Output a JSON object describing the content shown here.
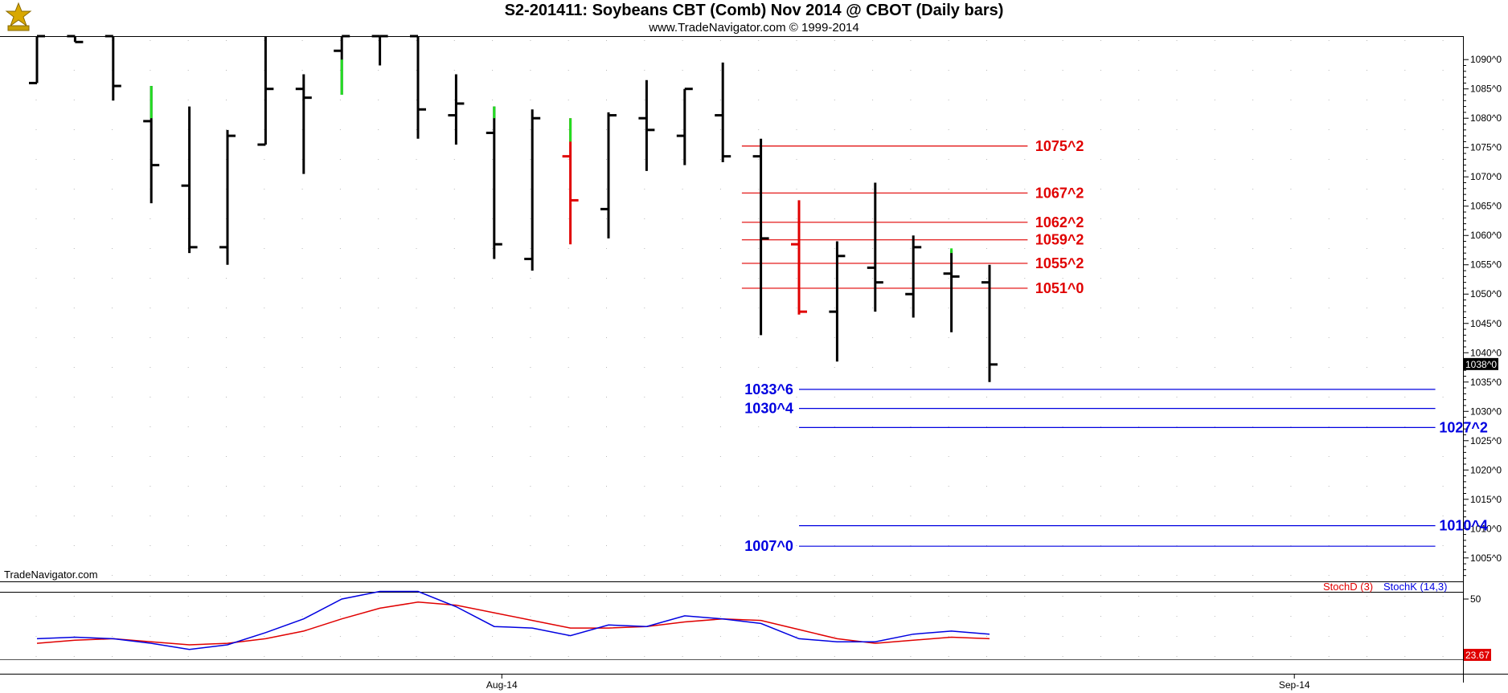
{
  "header": {
    "title": "S2-201411:  Soybeans CBT (Comb) Nov 2014 @ CBOT  (Daily bars)",
    "subtitle": "www.TradeNavigator.com © 1999-2014",
    "watermark": "TradeNavigator.com"
  },
  "colors": {
    "bar_default": "#000000",
    "bar_up_highlight": "#22dd22",
    "bar_red": "#e00000",
    "level_red": "#e00000",
    "level_blue": "#0000e0",
    "stoch_d": "#e00000",
    "stoch_k": "#0000e0",
    "last_price_bg": "#000000",
    "stoch_value_bg": "#e00000"
  },
  "chart_data": [
    {
      "type": "ohlc",
      "title": "S2-201411:  Soybeans CBT (Comb) Nov 2014 @ CBOT  (Daily bars)",
      "y_ticks": [
        "1090^0",
        "1085^0",
        "1080^0",
        "1075^0",
        "1070^0",
        "1065^0",
        "1060^0",
        "1055^0",
        "1050^0",
        "1045^0",
        "1040^0",
        "1035^0",
        "1030^0",
        "1025^0",
        "1020^0",
        "1015^0",
        "1010^0",
        "1005^0"
      ],
      "y_tick_values": [
        1090,
        1085,
        1080,
        1075,
        1070,
        1065,
        1060,
        1055,
        1050,
        1045,
        1040,
        1035,
        1030,
        1025,
        1020,
        1015,
        1010,
        1005
      ],
      "ylim": [
        1001,
        1094
      ],
      "x_labels": [
        {
          "text": "Aug-14",
          "bar_index": 12.2
        },
        {
          "text": "Sep-14",
          "bar_index": 33.0
        }
      ],
      "last_price_label": "1038^0",
      "last_price": 1038.0,
      "bars": [
        {
          "o": 1086,
          "h": 1094,
          "l": 1086,
          "c": 1094
        },
        {
          "o": 1094,
          "h": 1094,
          "l": 1093,
          "c": 1093
        },
        {
          "o": 1094,
          "h": 1094,
          "l": 1083,
          "c": 1085.5
        },
        {
          "o": 1079.5,
          "h": 1085.5,
          "l": 1065.5,
          "c": 1072,
          "hl": [
            1080,
            1085.5
          ]
        },
        {
          "o": 1068.5,
          "h": 1082,
          "l": 1057,
          "c": 1058
        },
        {
          "o": 1058,
          "h": 1078,
          "l": 1055,
          "c": 1077
        },
        {
          "o": 1075.5,
          "h": 1094,
          "l": 1075.5,
          "c": 1085
        },
        {
          "o": 1085,
          "h": 1087.5,
          "l": 1070.5,
          "c": 1083.5
        },
        {
          "o": 1091.5,
          "h": 1094,
          "l": 1084,
          "c": 1094,
          "hl": [
            1084,
            1090
          ]
        },
        {
          "o": 1094,
          "h": 1094,
          "l": 1089,
          "c": 1094
        },
        {
          "o": 1094,
          "h": 1094,
          "l": 1076.5,
          "c": 1081.5
        },
        {
          "o": 1080.5,
          "h": 1087.5,
          "l": 1075.5,
          "c": 1082.5
        },
        {
          "o": 1077.5,
          "h": 1082,
          "l": 1056,
          "c": 1058.5,
          "hl": [
            1080,
            1082
          ]
        },
        {
          "o": 1056,
          "h": 1081.5,
          "l": 1054,
          "c": 1080
        },
        {
          "o": 1073.5,
          "h": 1080,
          "l": 1058.5,
          "c": 1066,
          "color": "red",
          "hl": [
            1076,
            1080
          ]
        },
        {
          "o": 1064.5,
          "h": 1081,
          "l": 1059.5,
          "c": 1080.5
        },
        {
          "o": 1080,
          "h": 1086.5,
          "l": 1071,
          "c": 1078
        },
        {
          "o": 1077,
          "h": 1085,
          "l": 1072,
          "c": 1085
        },
        {
          "o": 1080.5,
          "h": 1089.5,
          "l": 1072.5,
          "c": 1073.5
        },
        {
          "o": 1073.5,
          "h": 1076.5,
          "l": 1043,
          "c": 1059.5
        },
        {
          "o": 1058.5,
          "h": 1066,
          "l": 1046.5,
          "c": 1047,
          "color": "red"
        },
        {
          "o": 1047,
          "h": 1059,
          "l": 1038.5,
          "c": 1056.5
        },
        {
          "o": 1054.5,
          "h": 1069,
          "l": 1047,
          "c": 1052
        },
        {
          "o": 1050,
          "h": 1060,
          "l": 1046,
          "c": 1058
        },
        {
          "o": 1053.5,
          "h": 1057.5,
          "l": 1043.5,
          "c": 1053,
          "hl": [
            1057,
            1057.8
          ]
        },
        {
          "o": 1052,
          "h": 1055,
          "l": 1035,
          "c": 1038
        }
      ],
      "levels": [
        {
          "label": "1075^2",
          "value": 1075.25,
          "color": "red",
          "x_start_bar": 18.5,
          "x_end_bar": 26.0,
          "label_side": "right",
          "label_bar": 26.2
        },
        {
          "label": "1067^2",
          "value": 1067.25,
          "color": "red",
          "x_start_bar": 18.5,
          "x_end_bar": 26.0,
          "label_side": "right",
          "label_bar": 26.2
        },
        {
          "label": "1062^2",
          "value": 1062.25,
          "color": "red",
          "x_start_bar": 18.5,
          "x_end_bar": 26.0,
          "label_side": "right",
          "label_bar": 26.2
        },
        {
          "label": "1059^2",
          "value": 1059.25,
          "color": "red",
          "x_start_bar": 18.5,
          "x_end_bar": 26.0,
          "label_side": "right",
          "label_bar": 26.2
        },
        {
          "label": "1055^2",
          "value": 1055.25,
          "color": "red",
          "x_start_bar": 18.5,
          "x_end_bar": 26.0,
          "label_side": "right",
          "label_bar": 26.2
        },
        {
          "label": "1051^0",
          "value": 1051.0,
          "color": "red",
          "x_start_bar": 18.5,
          "x_end_bar": 26.0,
          "label_side": "right",
          "label_bar": 26.2
        },
        {
          "label": "1033^6",
          "value": 1033.75,
          "color": "blue",
          "x_start_bar": 20.0,
          "x_end_bar": 36.7,
          "label_side": "left",
          "label_bar": 19.85
        },
        {
          "label": "1030^4",
          "value": 1030.5,
          "color": "blue",
          "x_start_bar": 20.0,
          "x_end_bar": 36.7,
          "label_side": "left",
          "label_bar": 19.85
        },
        {
          "label": "1027^2",
          "value": 1027.25,
          "color": "blue",
          "x_start_bar": 20.0,
          "x_end_bar": 36.7,
          "label_side": "right",
          "label_bar": 36.8
        },
        {
          "label": "1010^4",
          "value": 1010.5,
          "color": "blue",
          "x_start_bar": 20.0,
          "x_end_bar": 36.7,
          "label_side": "right",
          "label_bar": 36.8
        },
        {
          "label": "1007^0",
          "value": 1007.0,
          "color": "blue",
          "x_start_bar": 20.0,
          "x_end_bar": 36.7,
          "label_side": "left",
          "label_bar": 19.85
        }
      ]
    },
    {
      "type": "line",
      "title": "",
      "legend": [
        "StochD (3)",
        "StochK (14,3)"
      ],
      "legend_placement": "top-right",
      "y_ticks": [
        "50"
      ],
      "y_tick_values": [
        50
      ],
      "ylim": [
        0,
        100
      ],
      "last_value_label": "23.67",
      "series": [
        {
          "name": "StochD (3)",
          "color": "red",
          "values": [
            21,
            23,
            24,
            22,
            20,
            21,
            24,
            29,
            37,
            44,
            48,
            46,
            41,
            36,
            31,
            31,
            32,
            35,
            37,
            36,
            30,
            24,
            21,
            23,
            25,
            24
          ]
        },
        {
          "name": "StochK (14,3)",
          "color": "blue",
          "values": [
            24,
            25,
            24,
            21,
            17,
            20,
            28,
            37,
            50,
            55,
            55,
            45,
            32,
            31,
            26,
            33,
            32,
            39,
            37,
            34,
            24,
            22,
            22,
            27,
            29,
            27
          ]
        }
      ]
    }
  ]
}
